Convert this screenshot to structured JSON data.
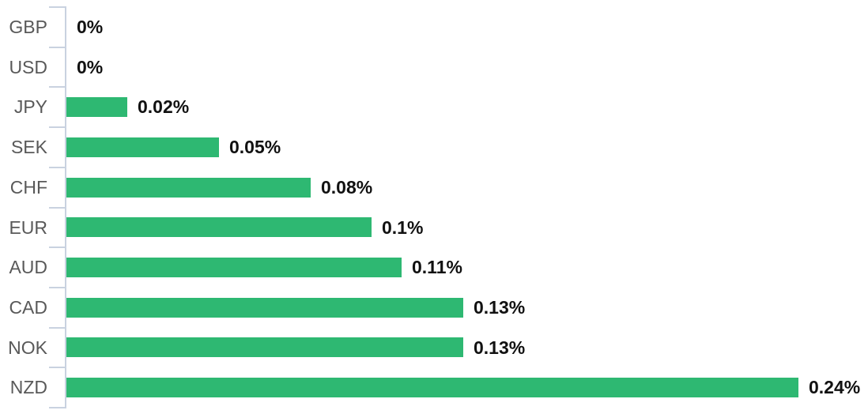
{
  "chart_data": {
    "type": "bar",
    "orientation": "horizontal",
    "title": "",
    "xlabel": "",
    "ylabel": "",
    "categories": [
      "GBP",
      "USD",
      "JPY",
      "SEK",
      "CHF",
      "EUR",
      "AUD",
      "CAD",
      "NOK",
      "NZD"
    ],
    "values": [
      0,
      0,
      0.02,
      0.05,
      0.08,
      0.1,
      0.11,
      0.13,
      0.13,
      0.24
    ],
    "value_labels": [
      "0%",
      "0%",
      "0.02%",
      "0.05%",
      "0.08%",
      "0.1%",
      "0.11%",
      "0.13%",
      "0.13%",
      "0.24%"
    ],
    "xlim": [
      0,
      0.25
    ],
    "grid": false,
    "legend": false,
    "data_labels": true,
    "bar_color": "#2eb872",
    "axis_color": "#c9d2e0",
    "category_label_color": "#595959",
    "value_label_color": "#111111"
  }
}
